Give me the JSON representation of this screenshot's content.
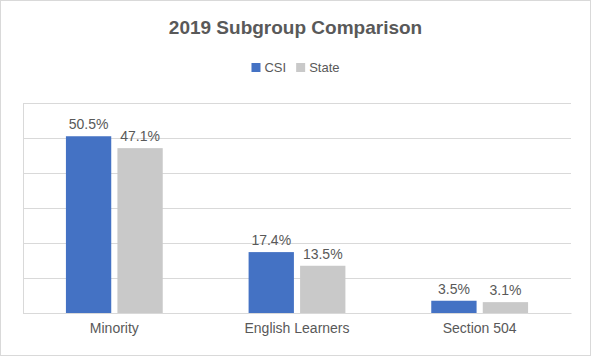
{
  "chart_data": {
    "type": "bar",
    "title": "2019 Subgroup Comparison",
    "categories": [
      "Minority",
      "English Learners",
      "Section 504"
    ],
    "series": [
      {
        "name": "CSI",
        "color": "#4472c4",
        "values": [
          50.5,
          17.4,
          3.5
        ],
        "value_labels": [
          "50.5%",
          "17.4%",
          "3.5%"
        ]
      },
      {
        "name": "State",
        "color": "#c9c9c9",
        "values": [
          47.1,
          13.5,
          3.1
        ],
        "value_labels": [
          "47.1%",
          "13.5%",
          "3.1%"
        ]
      }
    ],
    "ylim": [
      0,
      60
    ],
    "yticks": [
      0,
      10,
      20,
      30,
      40,
      50,
      60
    ],
    "grid": true,
    "legend": "top",
    "data_labels": true,
    "tick_labels": "x"
  }
}
